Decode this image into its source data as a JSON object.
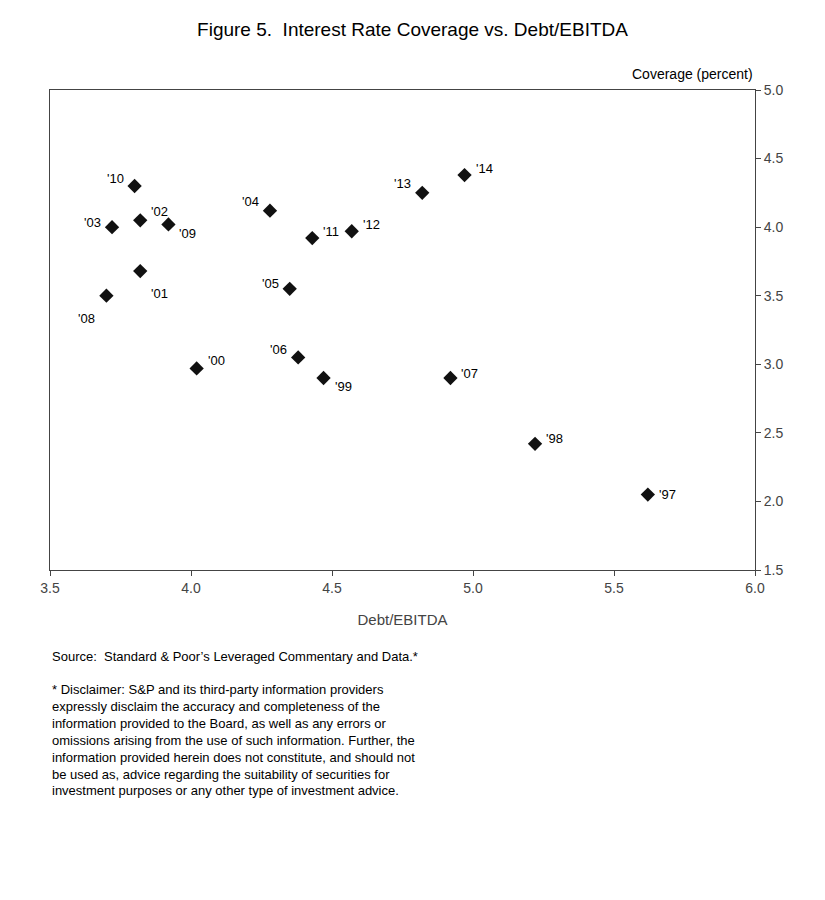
{
  "chart_data": {
    "type": "scatter",
    "title": "Figure 5.  Interest Rate Coverage vs. Debt/EBITDA",
    "x_label": "Debt/EBITDA",
    "y_label": "Coverage (percent)",
    "x": [
      5.62,
      5.22,
      4.47,
      4.02,
      3.82,
      3.82,
      3.72,
      4.28,
      4.35,
      4.38,
      4.92,
      3.7,
      3.92,
      3.8,
      4.43,
      4.57,
      4.82,
      4.97
    ],
    "values": [
      2.05,
      2.42,
      2.9,
      2.97,
      3.68,
      4.05,
      4.0,
      4.12,
      3.55,
      3.05,
      2.9,
      3.5,
      4.02,
      4.3,
      3.92,
      3.97,
      4.25,
      4.38
    ],
    "point_labels": [
      "'97",
      "'98",
      "'99",
      "'00",
      "'01",
      "'02",
      "'03",
      "'04",
      "'05",
      "'06",
      "'07",
      "'08",
      "'09",
      "'10",
      "'11",
      "'12",
      "'13",
      "'14"
    ],
    "color": "#111111",
    "marker": "diamond",
    "xlim": [
      3.5,
      6.0
    ],
    "ylim": [
      1.5,
      5.0
    ],
    "xticks": [
      3.5,
      {
        "value": 4.0,
        "label": "4.0"
      },
      4.5,
      {
        "value": 5.0,
        "label": "5.0"
      },
      5.5,
      {
        "value": 6.0,
        "label": "6.0"
      }
    ],
    "yticks": [
      1.5,
      {
        "value": 2.0,
        "label": "2.0"
      },
      2.5,
      {
        "value": 3.0,
        "label": "3.0"
      },
      3.5,
      {
        "value": 4.0,
        "label": "4.0"
      },
      4.5,
      {
        "value": 5.0,
        "label": "5.0"
      }
    ],
    "grid": false,
    "annotations": [
      "Source:  Standard & Poor’s Leveraged Commentary and Data.*",
      "* Disclaimer: S&P and its third-party information providers\nexpressly disclaim the accuracy and completeness of the\ninformation provided to the Board, as well as any errors or\nomissions arising from the use of such information. Further, the\ninformation provided herein does not constitute, and should not\nbe used as, advice regarding the suitability of securities for\ninvestment purposes or any other type of investment advice."
    ]
  }
}
